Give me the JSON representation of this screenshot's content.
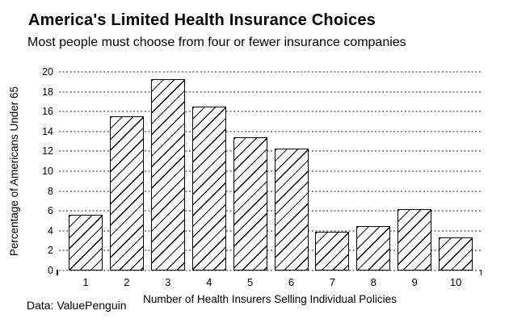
{
  "header": {
    "title": "America's Limited Health Insurance Choices",
    "subtitle": "Most people must choose from four or fewer insurance companies"
  },
  "footer": {
    "source": "Data: ValuePenguin"
  },
  "chart_data": {
    "type": "bar",
    "title": "America's Limited Health Insurance Choices",
    "subtitle": "Most people must choose from four or fewer insurance companies",
    "categories": [
      "1",
      "2",
      "3",
      "4",
      "5",
      "6",
      "7",
      "8",
      "9",
      "10"
    ],
    "values": [
      5.6,
      15.5,
      19.3,
      16.5,
      13.4,
      12.3,
      3.9,
      4.5,
      6.2,
      3.3
    ],
    "xlabel": "Number of Health Insurers Selling Individual Policies",
    "ylabel": "Percentage of Americans Under 65",
    "ylim": [
      0,
      20
    ],
    "ytick_step": 2,
    "grid": "horizontal-dotted",
    "legend": "none",
    "source": "Data: ValuePenguin",
    "style": {
      "bar_fill": "#ffffff",
      "bar_hatch": "diagonal-forward-slash",
      "bar_border_color": "#000000",
      "gridline_color": "#8f8f8f",
      "text_color": "#000000",
      "background": "#ffffff"
    }
  }
}
